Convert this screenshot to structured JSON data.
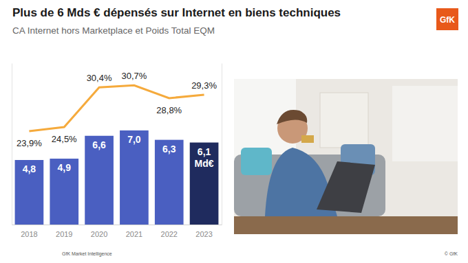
{
  "chart_data": {
    "type": "bar",
    "title": "Plus de 6 Mds € dépensés sur Internet en biens techniques",
    "subtitle": "CA Internet hors Marketplace et Poids Total EQM",
    "categories": [
      "2018",
      "2019",
      "2020",
      "2021",
      "2022",
      "2023"
    ],
    "series": [
      {
        "type": "bar",
        "values": [
          4.8,
          4.9,
          6.6,
          7.0,
          6.3,
          6.1
        ],
        "value_labels": [
          "4,8",
          "4,9",
          "6,6",
          "7,0",
          "6,3",
          "6,1 Md€"
        ],
        "colors": [
          "#4a5fc1",
          "#4a5fc1",
          "#4a5fc1",
          "#4a5fc1",
          "#4a5fc1",
          "#1f2b5e"
        ]
      },
      {
        "type": "line",
        "axis": "y2",
        "color": "#f5aa3c",
        "values": [
          23.9,
          24.5,
          30.4,
          30.7,
          28.8,
          29.3
        ],
        "value_labels": [
          "23,9%",
          "24,5%",
          "30,4%",
          "30,7%",
          "28,8%",
          "29,3%"
        ]
      }
    ],
    "ylim": [
      0,
      12
    ],
    "y2lim": [
      10,
      34
    ],
    "data_labels": true,
    "tick_labels": "x",
    "grid": false
  },
  "source": "GfK Market Intelligence",
  "copyright": "© GfK",
  "logo": "GfK"
}
